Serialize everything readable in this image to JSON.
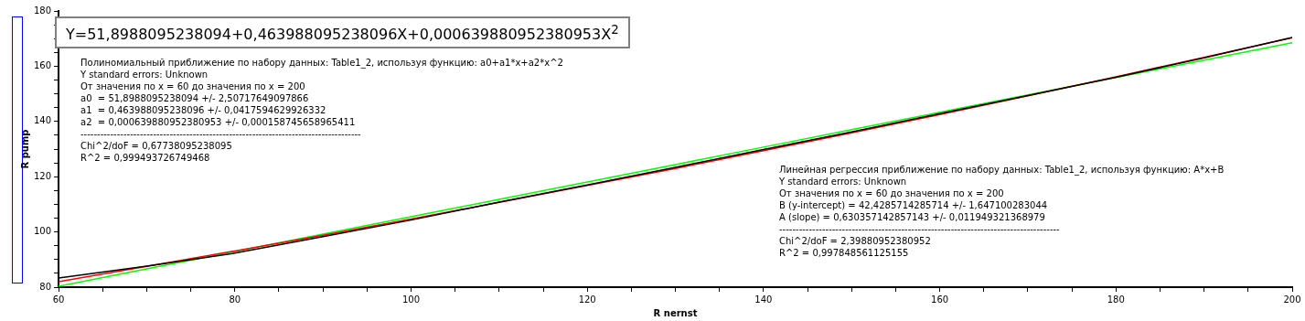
{
  "chart_data": {
    "type": "line",
    "xlabel": "R nernst",
    "ylabel": "R pump",
    "x": [
      60,
      70,
      80,
      90,
      100,
      110,
      120,
      130,
      140,
      150,
      160,
      170,
      180,
      190,
      200
    ],
    "series": [
      {
        "color": "#000000",
        "values": [
          83.3,
          87.6,
          92.3,
          98.3,
          104.3,
          110.8,
          117.0,
          123.4,
          129.8,
          136.2,
          142.8,
          149.4,
          156.0,
          163.0,
          170.4
        ]
      },
      {
        "color": "#ff0000",
        "values": [
          82.0,
          87.5,
          93.1,
          98.8,
          104.7,
          110.7,
          116.8,
          123.0,
          129.4,
          135.9,
          142.5,
          149.3,
          156.2,
          163.2,
          170.3
        ]
      },
      {
        "color": "#00ff00",
        "values": [
          80.3,
          86.6,
          92.9,
          99.2,
          105.5,
          111.8,
          118.1,
          124.4,
          130.7,
          137.0,
          143.3,
          149.6,
          155.9,
          162.2,
          168.5
        ]
      }
    ],
    "xlim": [
      60,
      200
    ],
    "xticks": [
      60,
      {
        "value": 65,
        "label": null
      },
      {
        "value": 70,
        "label": null
      },
      {
        "value": 75,
        "label": null
      },
      80,
      {
        "value": 85,
        "label": null
      },
      {
        "value": 90,
        "label": null
      },
      {
        "value": 95,
        "label": null
      },
      100,
      {
        "value": 105,
        "label": null
      },
      {
        "value": 110,
        "label": null
      },
      {
        "value": 115,
        "label": null
      },
      120,
      {
        "value": 125,
        "label": null
      },
      {
        "value": 130,
        "label": null
      },
      {
        "value": 135,
        "label": null
      },
      140,
      {
        "value": 145,
        "label": null
      },
      {
        "value": 150,
        "label": null
      },
      {
        "value": 155,
        "label": null
      },
      160,
      {
        "value": 165,
        "label": null
      },
      {
        "value": 170,
        "label": null
      },
      {
        "value": 175,
        "label": null
      },
      180,
      {
        "value": 185,
        "label": null
      },
      {
        "value": 190,
        "label": null
      },
      {
        "value": 195,
        "label": null
      },
      200
    ],
    "ylim": [
      80,
      180
    ],
    "yticks": [
      80,
      {
        "value": 85,
        "label": null
      },
      {
        "value": 90,
        "label": null
      },
      {
        "value": 95,
        "label": null
      },
      100,
      {
        "value": 105,
        "label": null
      },
      {
        "value": 110,
        "label": null
      },
      {
        "value": 115,
        "label": null
      },
      120,
      {
        "value": 125,
        "label": null
      },
      {
        "value": 130,
        "label": null
      },
      {
        "value": 135,
        "label": null
      },
      140,
      {
        "value": 145,
        "label": null
      },
      {
        "value": 150,
        "label": null
      },
      {
        "value": 155,
        "label": null
      },
      160,
      {
        "value": 165,
        "label": null
      },
      {
        "value": 170,
        "label": null
      },
      {
        "value": 175,
        "label": null
      },
      180
    ],
    "grid": false,
    "legend": false,
    "marker": "none",
    "line_style": "solid",
    "annotations": [
      "Y=51,8988095238094+0,463988095238096X+0,000639880952380953X$^{2}$",
      "Полиномиальный приближение по набору данных: Table1_2, используя функцию: a0+a1*x+a2*x^2\nY standard errors: Unknown\nОт значения по x = 60 до значения по x = 200\na0  = 51,8988095238094 +/- 2,50717649097866\na1  = 0,463988095238096 +/- 0,0417594629926332\na2  = 0,000639880952380953 +/- 0,000158745658965411\n-------------------------------------------------------------------------------------\nChi^2/doF = 0,67738095238095\nR^2 = 0,999493726749468",
      "Линейная регрессия приближение по набору данных: Table1_2, используя функцию: A*x+B\nY standard errors: Unknown\nОт значения по x = 60 до значения по x = 200\nB (y-intercept) = 42,4285714285714 +/- 1,647100283044\nA (slope) = 0,630357142857143 +/- 0,011949321368979\n-------------------------------------------------------------------------------------\nChi^2/doF = 2,39880952380952\nR^2 = 0,997848561125155"
    ]
  }
}
